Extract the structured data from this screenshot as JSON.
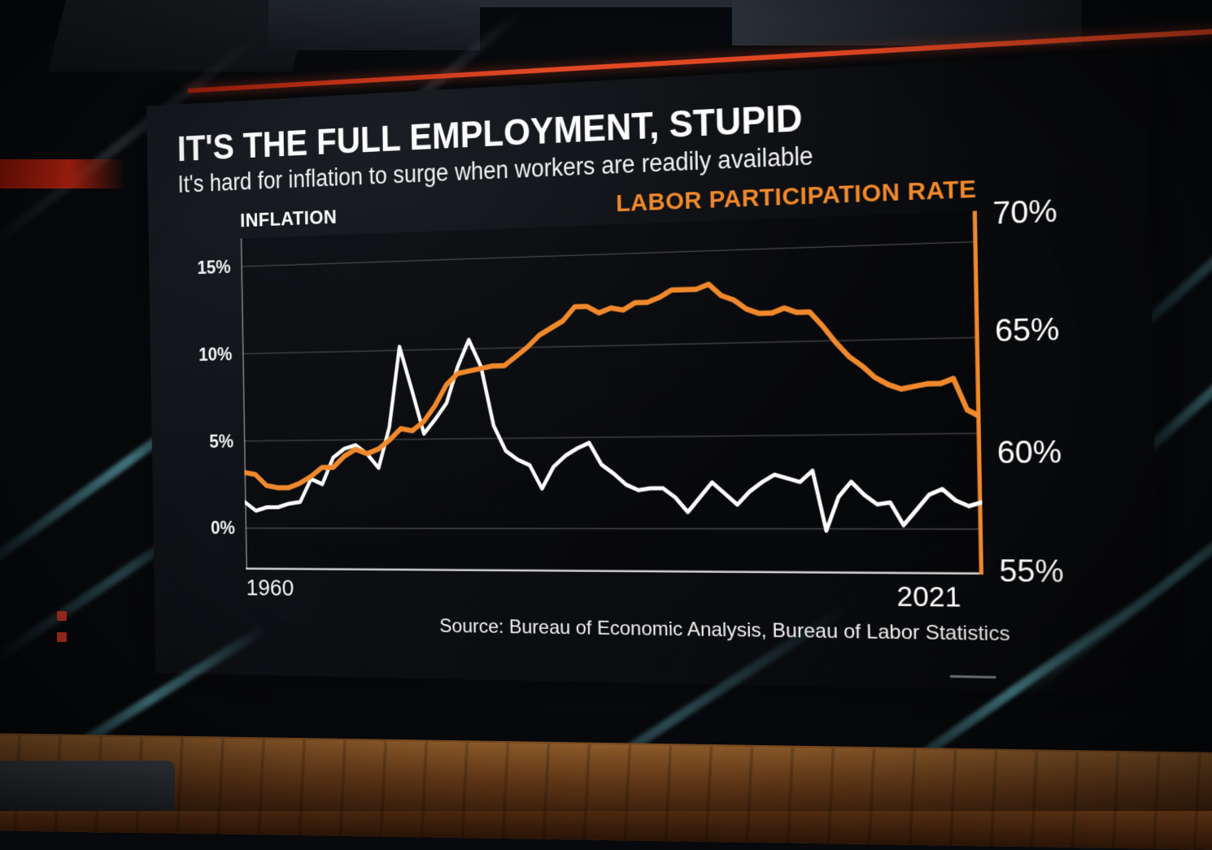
{
  "colors": {
    "orange": "#F0892C",
    "white": "#FFFFFF",
    "red_stripe": "#E24A26",
    "grid": "#5C5C5C",
    "background": "#0B0D10"
  },
  "chart_data": {
    "type": "line",
    "title": "IT'S THE FULL EMPLOYMENT, STUPID",
    "subtitle": "It's hard for inflation to surge when workers are readily available",
    "source": "Source: Bureau of Economic Analysis, Bureau of Labor Statistics",
    "grid": "horizontal",
    "legend_position": "top",
    "xlim": [
      1960,
      2021
    ],
    "x_labels": [
      "1960",
      "2021"
    ],
    "x": [
      1960,
      1961,
      1962,
      1963,
      1964,
      1965,
      1966,
      1967,
      1968,
      1969,
      1970,
      1971,
      1972,
      1973,
      1974,
      1975,
      1976,
      1977,
      1978,
      1979,
      1980,
      1981,
      1982,
      1983,
      1984,
      1985,
      1986,
      1987,
      1988,
      1989,
      1990,
      1991,
      1992,
      1993,
      1994,
      1995,
      1996,
      1997,
      1998,
      1999,
      2000,
      2001,
      2002,
      2003,
      2004,
      2005,
      2006,
      2007,
      2008,
      2009,
      2010,
      2011,
      2012,
      2013,
      2014,
      2015,
      2016,
      2017,
      2018,
      2019,
      2020,
      2021
    ],
    "left_axis": {
      "label": "INFLATION",
      "unit": "%",
      "min": 0,
      "max": 15,
      "ticks": [
        "15%",
        "10%",
        "5%",
        "0%"
      ],
      "tick_values": [
        15,
        10,
        5,
        0
      ],
      "top_frac": 0.085,
      "bottom_frac": 0.875
    },
    "right_axis": {
      "label": "LABOR PARTICIPATION RATE",
      "unit": "%",
      "min": 55,
      "max": 70,
      "ticks": [
        "70%",
        "65%",
        "60%",
        "55%"
      ],
      "tick_values": [
        70,
        65,
        60,
        55
      ],
      "top_frac": 0.0,
      "bottom_frac": 1.0
    },
    "series": [
      {
        "name": "INFLATION",
        "axis": "left",
        "color": "#FFFFFF",
        "values": [
          1.5,
          1.0,
          1.2,
          1.2,
          1.4,
          1.5,
          2.8,
          2.5,
          4.0,
          4.5,
          4.7,
          4.2,
          3.4,
          5.7,
          10.2,
          7.8,
          5.3,
          6.1,
          7.0,
          9.0,
          10.5,
          9.0,
          5.7,
          4.3,
          3.8,
          3.5,
          2.2,
          3.4,
          4.0,
          4.4,
          4.7,
          3.5,
          3.0,
          2.4,
          2.1,
          2.2,
          2.2,
          1.7,
          0.9,
          1.7,
          2.5,
          1.9,
          1.3,
          2.0,
          2.5,
          2.9,
          2.7,
          2.5,
          3.1,
          -0.1,
          1.7,
          2.5,
          1.8,
          1.3,
          1.4,
          0.2,
          1.0,
          1.8,
          2.1,
          1.5,
          1.2,
          1.4
        ]
      },
      {
        "name": "LABOR PARTICIPATION RATE",
        "axis": "right",
        "color": "#F0892C",
        "values": [
          59.4,
          59.3,
          58.8,
          58.7,
          58.7,
          58.9,
          59.2,
          59.6,
          59.6,
          60.1,
          60.4,
          60.2,
          60.4,
          60.8,
          61.3,
          61.2,
          61.6,
          62.3,
          63.2,
          63.7,
          63.8,
          63.9,
          64.0,
          64.0,
          64.4,
          64.8,
          65.3,
          65.6,
          65.9,
          66.5,
          66.5,
          66.2,
          66.4,
          66.3,
          66.6,
          66.6,
          66.8,
          67.1,
          67.1,
          67.1,
          67.3,
          66.8,
          66.6,
          66.2,
          66.0,
          66.0,
          66.2,
          66.0,
          66.0,
          65.4,
          64.7,
          64.1,
          63.7,
          63.2,
          62.9,
          62.7,
          62.8,
          62.9,
          62.9,
          63.1,
          61.8,
          61.5
        ]
      }
    ]
  }
}
